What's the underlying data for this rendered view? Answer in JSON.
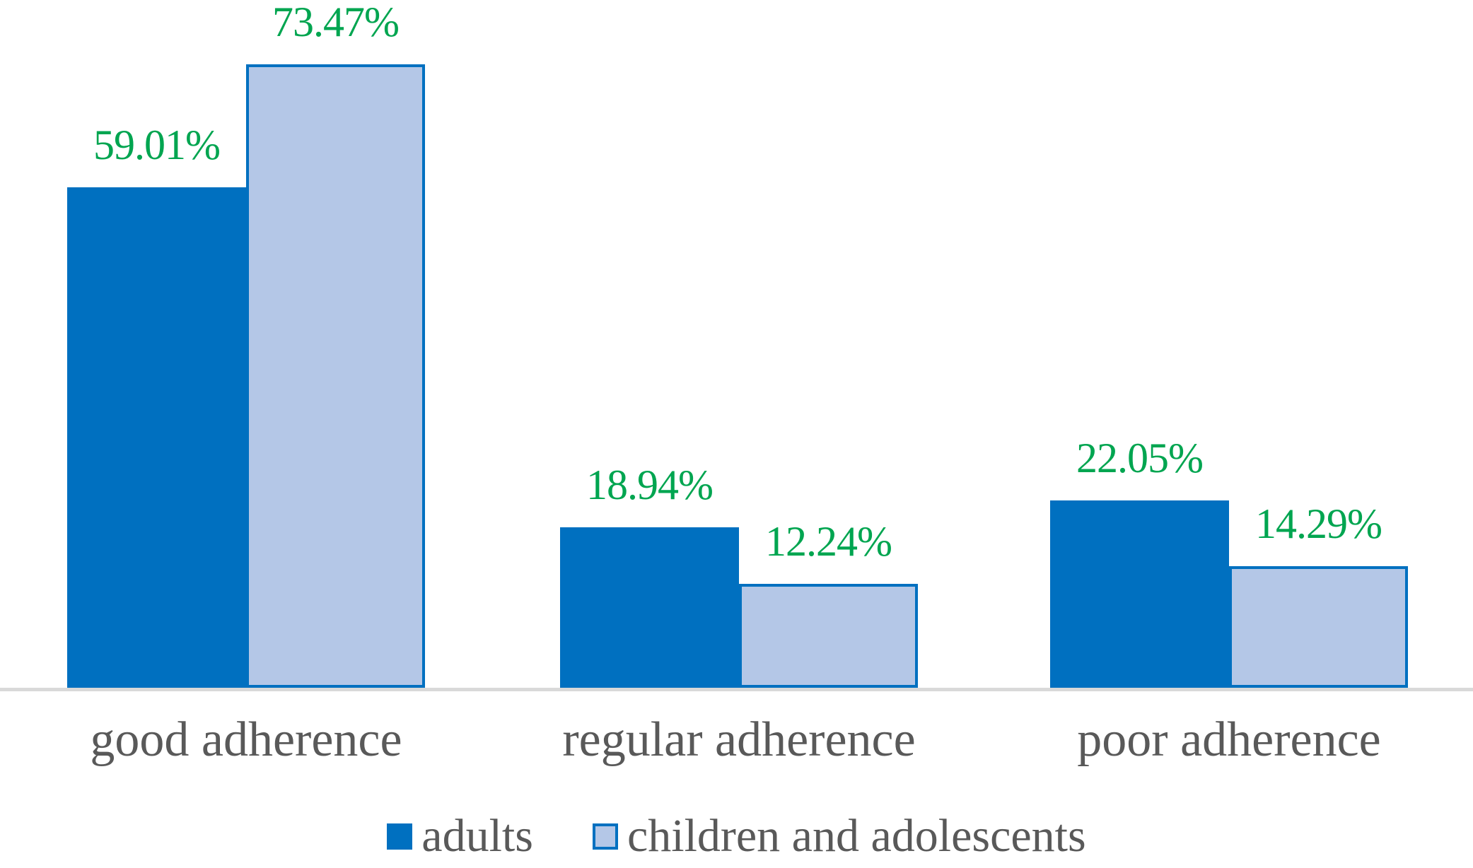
{
  "chart_data": {
    "type": "bar",
    "title": "",
    "xlabel": "",
    "ylabel": "",
    "categories": [
      "good adherence",
      "regular adherence",
      "poor adherence"
    ],
    "series": [
      {
        "name": "adults",
        "values": [
          59.01,
          18.94,
          22.05
        ],
        "data_labels": [
          "59.01%",
          "18.94%",
          "22.05%"
        ],
        "fill_color": "#0070C0",
        "border_color": "#0070C0"
      },
      {
        "name": "children and adolescents",
        "values": [
          73.47,
          12.24,
          14.29
        ],
        "data_labels": [
          "73.47%",
          "12.24%",
          "14.29%"
        ],
        "fill_color": "#B4C7E7",
        "border_color": "#0070C0"
      }
    ],
    "ylim": [
      0,
      80
    ],
    "grid": false,
    "y_axis_visible": false,
    "legend_position": "bottom",
    "colors": {
      "data_label_color": "#00A550",
      "category_label_color": "#595959",
      "legend_text_color": "#595959",
      "axis_line_color": "#D9D9D9",
      "background": "#FFFFFF"
    }
  }
}
